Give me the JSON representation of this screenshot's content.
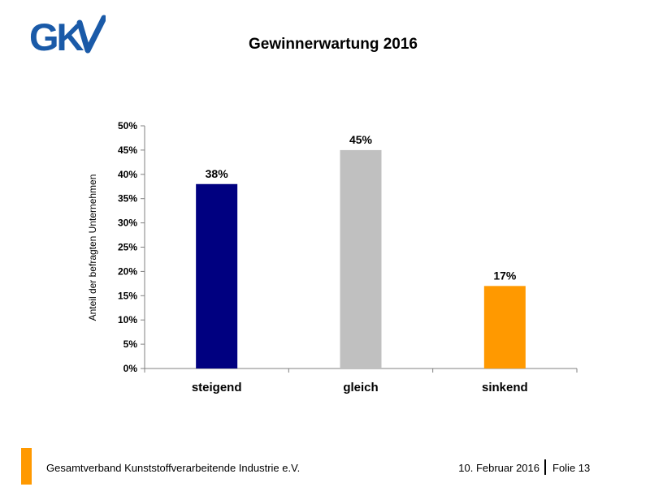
{
  "logo": {
    "text": "GKV",
    "color": "#1a5aa8"
  },
  "footer": {
    "organization": "Gesamtverband Kunststoffverarbeitende Industrie e.V.",
    "date": "10. Februar 2016",
    "slide": "Folie 13",
    "accent_color": "#FF9900"
  },
  "chart_data": {
    "type": "bar",
    "title": "Gewinnerwartung 2016",
    "xlabel": "",
    "ylabel": "Anteil der befragten Unternehmen",
    "categories": [
      "steigend",
      "gleich",
      "sinkend"
    ],
    "values": [
      38,
      45,
      17
    ],
    "value_labels": [
      "38%",
      "45%",
      "17%"
    ],
    "colors": [
      "#000080",
      "#C0C0C0",
      "#FF9900"
    ],
    "ylim": [
      0,
      50
    ],
    "y_ticks": [
      0,
      5,
      10,
      15,
      20,
      25,
      30,
      35,
      40,
      45,
      50
    ],
    "y_tick_labels": [
      "0%",
      "5%",
      "10%",
      "15%",
      "20%",
      "25%",
      "30%",
      "35%",
      "40%",
      "45%",
      "50%"
    ],
    "grid": false,
    "legend": "none"
  }
}
